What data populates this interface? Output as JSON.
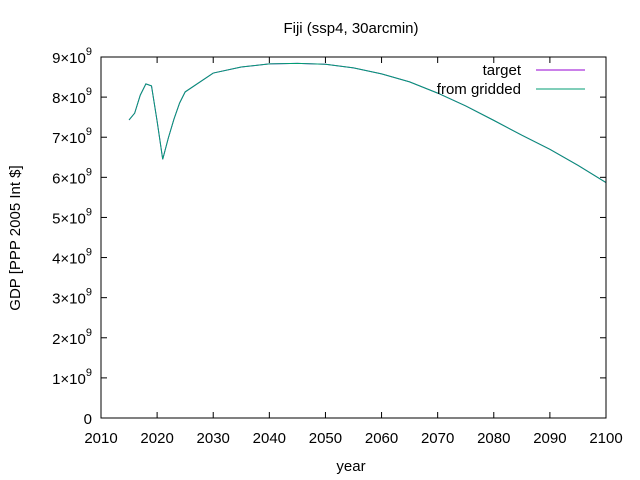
{
  "chart_data": {
    "type": "line",
    "title": "Fiji (ssp4, 30arcmin)",
    "xlabel": "year",
    "ylabel": "GDP [PPP 2005 Int $]",
    "xlim": [
      2010,
      2100
    ],
    "ylim": [
      0,
      9000000000
    ],
    "x_ticks": [
      "2010",
      "2020",
      "2030",
      "2040",
      "2050",
      "2060",
      "2070",
      "2080",
      "2090",
      "2100"
    ],
    "y_ticks": [
      {
        "mantissa": "0",
        "exponent": ""
      },
      {
        "mantissa": "1×10",
        "exponent": "9"
      },
      {
        "mantissa": "2×10",
        "exponent": "9"
      },
      {
        "mantissa": "3×10",
        "exponent": "9"
      },
      {
        "mantissa": "4×10",
        "exponent": "9"
      },
      {
        "mantissa": "5×10",
        "exponent": "9"
      },
      {
        "mantissa": "6×10",
        "exponent": "9"
      },
      {
        "mantissa": "7×10",
        "exponent": "9"
      },
      {
        "mantissa": "8×10",
        "exponent": "9"
      },
      {
        "mantissa": "9×10",
        "exponent": "9"
      }
    ],
    "grid": false,
    "legend_position": "top-right",
    "series": [
      {
        "name": "target",
        "color": "#9400d3",
        "x": [
          2015,
          2016,
          2017,
          2018,
          2019,
          2020,
          2021,
          2022,
          2023,
          2024,
          2025,
          2030,
          2035,
          2040,
          2045,
          2050,
          2055,
          2060,
          2065,
          2070,
          2075,
          2080,
          2085,
          2090,
          2095,
          2100
        ],
        "y": [
          7430000000.0,
          7600000000.0,
          8050000000.0,
          8330000000.0,
          8280000000.0,
          7400000000.0,
          6450000000.0,
          6980000000.0,
          7450000000.0,
          7850000000.0,
          8130000000.0,
          8600000000.0,
          8750000000.0,
          8830000000.0,
          8840000000.0,
          8820000000.0,
          8730000000.0,
          8580000000.0,
          8380000000.0,
          8100000000.0,
          7780000000.0,
          7420000000.0,
          7050000000.0,
          6700000000.0,
          6300000000.0,
          5870000000.0
        ]
      },
      {
        "name": "from gridded",
        "color": "#009e73",
        "x": [
          2015,
          2016,
          2017,
          2018,
          2019,
          2020,
          2021,
          2022,
          2023,
          2024,
          2025,
          2030,
          2035,
          2040,
          2045,
          2050,
          2055,
          2060,
          2065,
          2070,
          2075,
          2080,
          2085,
          2090,
          2095,
          2100
        ],
        "y": [
          7430000000.0,
          7600000000.0,
          8050000000.0,
          8330000000.0,
          8280000000.0,
          7400000000.0,
          6450000000.0,
          6980000000.0,
          7450000000.0,
          7850000000.0,
          8130000000.0,
          8600000000.0,
          8750000000.0,
          8830000000.0,
          8840000000.0,
          8820000000.0,
          8730000000.0,
          8580000000.0,
          8380000000.0,
          8100000000.0,
          7780000000.0,
          7420000000.0,
          7050000000.0,
          6700000000.0,
          6300000000.0,
          5870000000.0
        ]
      }
    ]
  }
}
